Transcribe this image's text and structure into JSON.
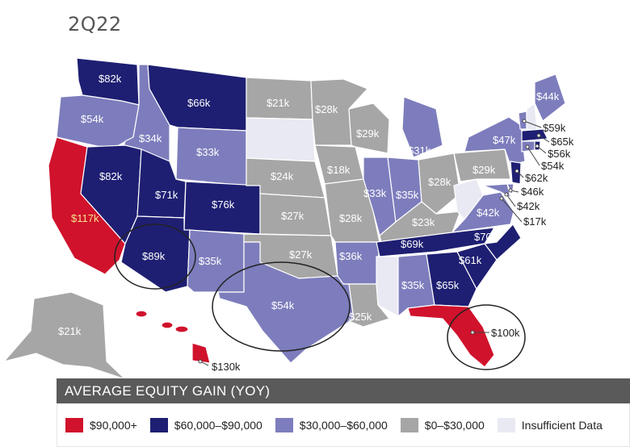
{
  "title": "2Q22",
  "colors": {
    "red": "#d0122c",
    "navy": "#1e1f72",
    "lavender": "#7d7dbd",
    "gray": "#a6a6a6",
    "light": "#e8e9f2"
  },
  "states": {
    "WA": "$82k",
    "OR": "$54k",
    "ID": "$34k",
    "MT": "$66k",
    "WY": "$33k",
    "ND": "$21k",
    "MN": "$28k",
    "WI": "$29k",
    "MI": "$31k",
    "CA": "$117k",
    "NV": "$82k",
    "UT": "$71k",
    "CO": "$76k",
    "NE": "$24k",
    "IA": "$18k",
    "IL": "$33k",
    "IN": "$35k",
    "OH": "$28k",
    "PA": "$29k",
    "NY": "$47k",
    "ME": "$44k",
    "KS": "$27k",
    "MO": "$28k",
    "KY": "$23k",
    "AZ": "$89k",
    "NM": "$35k",
    "OK": "$27k",
    "AR": "$36k",
    "TN": "$69k",
    "NC": "$70k",
    "SC": "$61k",
    "TX": "$54k",
    "LA": "$25k",
    "AL": "$35k",
    "GA": "$65k",
    "FL": "$100k",
    "VA": "$42k",
    "AK": "$21k",
    "HI": "$130k",
    "VT": "$59k",
    "MA": "$65k",
    "RI": "$56k",
    "CT": "$54k",
    "NJ": "$62k",
    "DE": "$46k",
    "MD": "$42k",
    "DC": "$17k"
  },
  "legend": {
    "header": "AVERAGE EQUITY GAIN (YOY)",
    "items": [
      {
        "label": "$90,000+",
        "color": "#d0122c"
      },
      {
        "label": "$60,000–$90,000",
        "color": "#1e1f72"
      },
      {
        "label": "$30,000–$60,000",
        "color": "#7d7dbd"
      },
      {
        "label": "$0–$30,000",
        "color": "#a6a6a6"
      },
      {
        "label": "Insufficient Data",
        "color": "#e8e9f2"
      }
    ]
  }
}
